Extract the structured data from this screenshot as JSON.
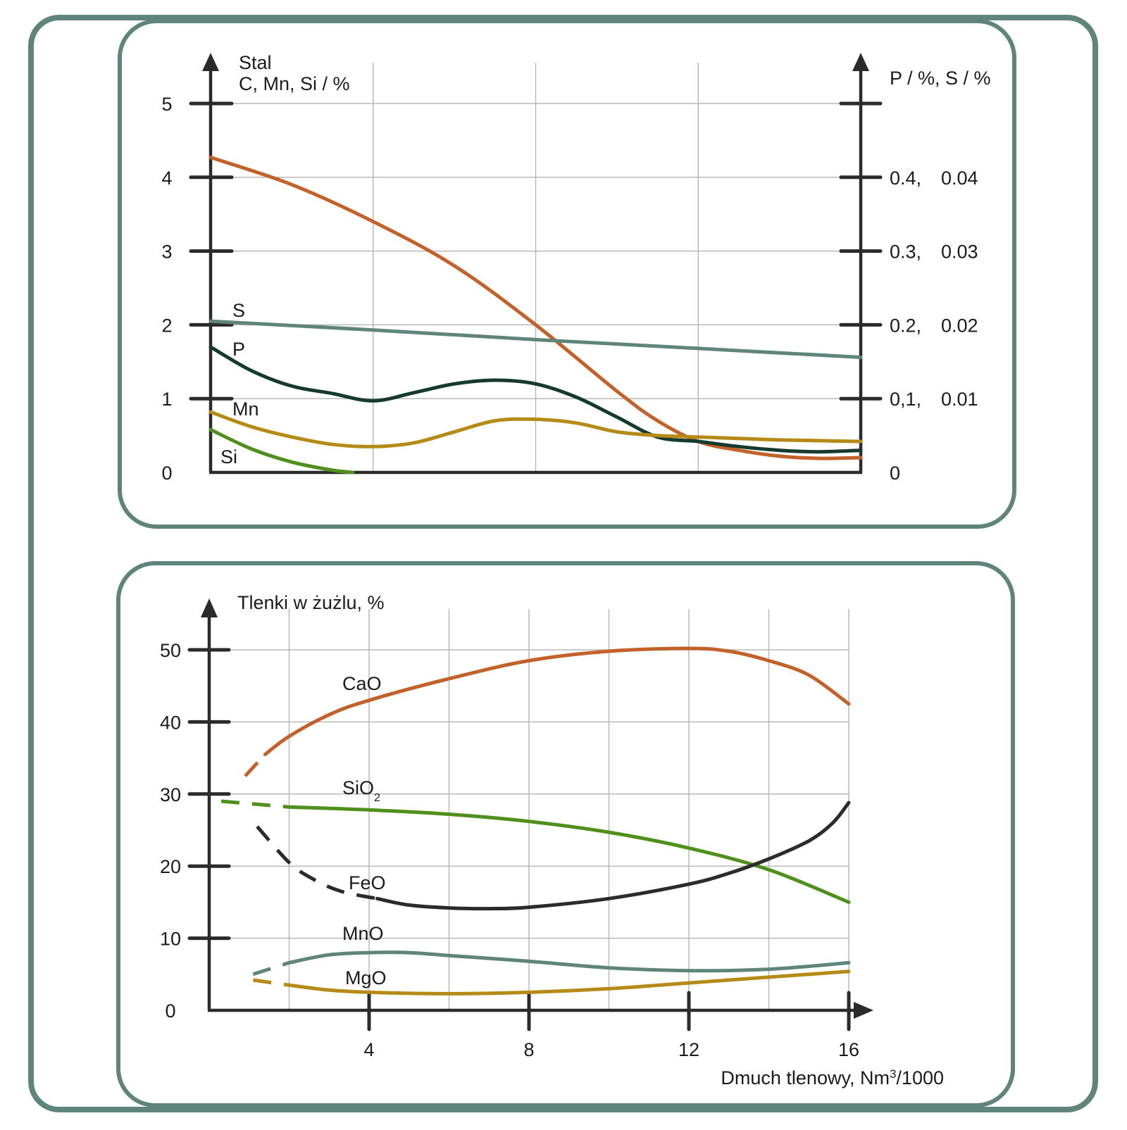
{
  "colors": {
    "frame": "#5f8479",
    "axis": "#2b2b2b",
    "grid": "#b9b9b9",
    "C": "#c2622a",
    "S": "#5f8479",
    "P": "#163a2e",
    "Mn": "#b58a17",
    "Si": "#4f8f1c",
    "CaO": "#c2622a",
    "SiO2": "#4f8f1c",
    "FeO": "#2b2b2b",
    "MnO": "#5f8479",
    "MgO": "#b58a17"
  },
  "chart_data": [
    {
      "type": "line",
      "title": "",
      "xlabel": "",
      "ylabel": "Stal",
      "ylabel_line2": "C, Mn, Si / %",
      "ylabel_right": "P / %, S / %",
      "xlim": [
        0,
        16
      ],
      "x_gridlines": [
        4,
        8,
        12
      ],
      "ylim": [
        0,
        5
      ],
      "yticks": [
        0,
        1,
        2,
        3,
        4,
        5
      ],
      "ytick_labels": [
        "0",
        "1",
        "2",
        "3",
        "4",
        "5"
      ],
      "yticks_right": [
        0,
        1,
        2,
        3,
        4,
        5
      ],
      "ytick_labels_right": [
        {
          "p": "0",
          "s": ""
        },
        {
          "p": "0,1,",
          "s": "0.01"
        },
        {
          "p": "0.2,",
          "s": "0.02"
        },
        {
          "p": "0.3,",
          "s": "0.03"
        },
        {
          "p": "0.4,",
          "s": "0.04"
        },
        {
          "p": "",
          "s": ""
        }
      ],
      "series": [
        {
          "name": "C",
          "label": "",
          "color_key": "C",
          "axis": "left",
          "x": [
            0,
            2,
            4,
            6,
            8,
            10,
            11,
            12,
            13,
            14,
            15,
            16
          ],
          "y": [
            4.27,
            3.9,
            3.4,
            2.8,
            2.0,
            1.1,
            0.7,
            0.42,
            0.3,
            0.22,
            0.19,
            0.2
          ]
        },
        {
          "name": "S",
          "label": "S",
          "color_key": "S",
          "axis": "right",
          "x": [
            0,
            4,
            8,
            12,
            16
          ],
          "y": [
            2.05,
            1.93,
            1.8,
            1.68,
            1.56
          ]
        },
        {
          "name": "P",
          "label": "P",
          "color_key": "P",
          "axis": "right",
          "x": [
            0,
            1,
            2,
            3,
            4,
            5,
            6,
            7,
            8,
            9,
            10,
            11,
            12,
            13,
            14,
            15,
            16
          ],
          "y": [
            1.7,
            1.38,
            1.17,
            1.07,
            0.97,
            1.08,
            1.2,
            1.25,
            1.2,
            1.02,
            0.75,
            0.48,
            0.42,
            0.35,
            0.3,
            0.28,
            0.3
          ]
        },
        {
          "name": "Mn",
          "label": "Mn",
          "color_key": "Mn",
          "axis": "left",
          "x": [
            0,
            1,
            2,
            3,
            4,
            5,
            6,
            7,
            8,
            9,
            10,
            11,
            12,
            13,
            14,
            15,
            16
          ],
          "y": [
            0.82,
            0.62,
            0.48,
            0.38,
            0.35,
            0.4,
            0.55,
            0.7,
            0.72,
            0.67,
            0.55,
            0.5,
            0.48,
            0.46,
            0.44,
            0.43,
            0.42
          ]
        },
        {
          "name": "Si",
          "label": "Si",
          "color_key": "Si",
          "axis": "left",
          "x": [
            0,
            1,
            2,
            3,
            3.5
          ],
          "y": [
            0.58,
            0.32,
            0.14,
            0.03,
            0.0
          ]
        }
      ]
    },
    {
      "type": "line",
      "title": "",
      "ylabel": "Tlenki w żużlu, %",
      "xlabel": "Dmuch tlenowy, Nm³/1000",
      "xlabel_parts": {
        "before": "Dmuch tlenowy, Nm",
        "sup": "3",
        "after": "/1000"
      },
      "xlim": [
        0,
        16
      ],
      "x_gridlines": [
        2,
        4,
        6,
        8,
        10,
        12,
        14,
        16
      ],
      "xticks": [
        4,
        8,
        12,
        16
      ],
      "xtick_labels": [
        "4",
        "8",
        "12",
        "16"
      ],
      "ylim": [
        0,
        50
      ],
      "y_gridlines": [
        10,
        20,
        30,
        40,
        50
      ],
      "yticks": [
        0,
        10,
        20,
        30,
        40,
        50
      ],
      "ytick_labels": [
        "0",
        "10",
        "20",
        "30",
        "40",
        "50"
      ],
      "series": [
        {
          "name": "CaO",
          "label": "CaO",
          "color_key": "CaO",
          "dashed": {
            "x": [
              0.9,
              1.4
            ],
            "y": [
              32.5,
              35.5
            ]
          },
          "x": [
            1.4,
            2,
            3,
            4,
            6,
            8,
            10,
            12,
            13,
            14,
            15,
            16
          ],
          "y": [
            35.5,
            38,
            41,
            43,
            46,
            48.5,
            49.8,
            50.2,
            49.8,
            48.5,
            46.5,
            42.5
          ]
        },
        {
          "name": "SiO2",
          "label": "SiO",
          "label_sub": "2",
          "color_key": "SiO2",
          "dashed": {
            "x": [
              0.3,
              2.0
            ],
            "y": [
              29.0,
              28.2
            ]
          },
          "x": [
            2.0,
            4,
            6,
            8,
            10,
            12,
            14,
            16
          ],
          "y": [
            28.2,
            27.8,
            27.2,
            26.2,
            24.7,
            22.5,
            19.5,
            15.0
          ]
        },
        {
          "name": "FeO",
          "label": "FeO",
          "color_key": "FeO",
          "dashed": {
            "x": [
              1.2,
              2.0,
              2.6,
              3.3,
              4.2
            ],
            "y": [
              25.5,
              20.5,
              18.2,
              16.5,
              15.5
            ]
          },
          "x": [
            4.2,
            5,
            6,
            7,
            8,
            10,
            12,
            13,
            14,
            15,
            15.6,
            16
          ],
          "y": [
            15.5,
            14.6,
            14.2,
            14.1,
            14.3,
            15.5,
            17.5,
            19,
            21,
            23.5,
            26,
            28.8
          ]
        },
        {
          "name": "MnO",
          "label": "MnO",
          "color_key": "MnO",
          "dashed": {
            "x": [
              1.1,
              2.0
            ],
            "y": [
              5.0,
              6.6
            ]
          },
          "x": [
            2.0,
            3,
            4,
            5,
            6,
            8,
            10,
            12,
            14,
            16
          ],
          "y": [
            6.6,
            7.7,
            8.0,
            8.0,
            7.6,
            6.8,
            5.9,
            5.5,
            5.7,
            6.6
          ]
        },
        {
          "name": "MgO",
          "label": "MgO",
          "color_key": "MgO",
          "dashed": {
            "x": [
              1.1,
              2.0
            ],
            "y": [
              4.2,
              3.5
            ]
          },
          "x": [
            2.0,
            3,
            4,
            6,
            8,
            10,
            12,
            14,
            16
          ],
          "y": [
            3.5,
            2.8,
            2.5,
            2.3,
            2.5,
            3.0,
            3.8,
            4.6,
            5.4
          ]
        }
      ]
    }
  ]
}
